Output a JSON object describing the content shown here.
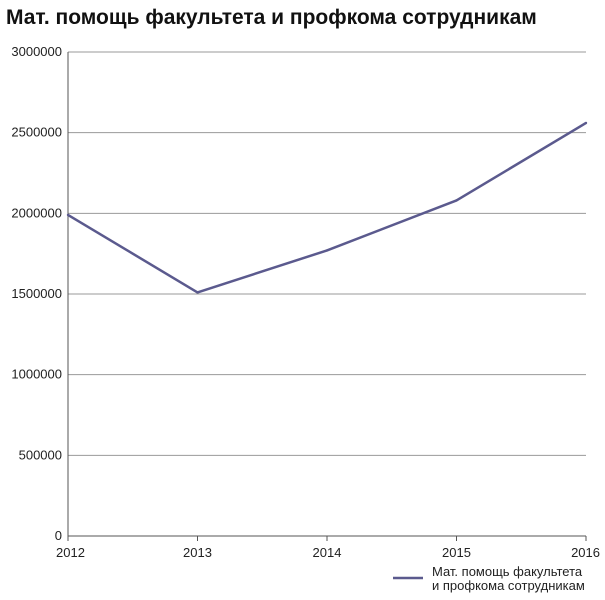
{
  "chart_data": {
    "type": "line",
    "title": "Мат. помощь факультета и профкома сотрудникам",
    "xlabel": "",
    "ylabel": "",
    "categories": [
      "2012",
      "2013",
      "2014",
      "2015",
      "2016"
    ],
    "series": [
      {
        "name": "Мат. помощь факультета и профкома сотрудникам",
        "legend_lines": [
          "Мат. помощь факультета",
          "и профкома сотрудникам"
        ],
        "color": "#5b5a8e",
        "values": [
          1990000,
          1510000,
          1770000,
          2080000,
          2560000
        ]
      }
    ],
    "ylim": [
      0,
      3000000
    ],
    "yticks": [
      "0",
      "500000",
      "1000000",
      "1500000",
      "2000000",
      "2500000",
      "3000000"
    ],
    "grid": true,
    "legend_position": "bottom-right"
  }
}
